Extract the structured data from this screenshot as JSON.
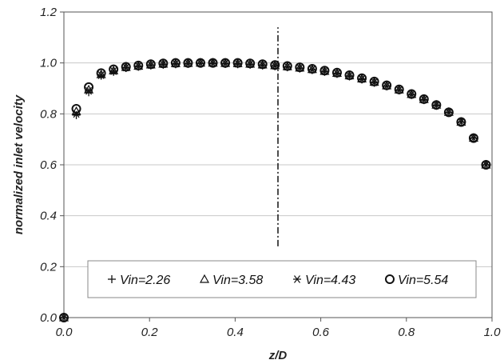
{
  "chart_data": {
    "type": "scatter",
    "title": "",
    "xlabel": "z/D",
    "ylabel": "normalized inlet velocity",
    "xlim": [
      0.0,
      1.0
    ],
    "ylim": [
      0.0,
      1.2
    ],
    "x_ticks": [
      "0.0",
      "0.2",
      "0.4",
      "0.6",
      "0.8",
      "1.0"
    ],
    "y_ticks": [
      "0.0",
      "0.2",
      "0.4",
      "0.6",
      "0.8",
      "1.0",
      "1.2"
    ],
    "grid": "horizontal",
    "legend_position": "bottom",
    "reference_line": {
      "style": "dash-dot",
      "x": 0.5,
      "y_range": [
        0.28,
        1.14
      ]
    },
    "x": [
      0.0,
      0.029,
      0.058,
      0.087,
      0.116,
      0.145,
      0.174,
      0.203,
      0.232,
      0.261,
      0.29,
      0.319,
      0.348,
      0.377,
      0.406,
      0.435,
      0.464,
      0.493,
      0.522,
      0.551,
      0.58,
      0.609,
      0.638,
      0.667,
      0.696,
      0.725,
      0.754,
      0.783,
      0.812,
      0.841,
      0.87,
      0.899,
      0.928,
      0.957,
      0.986
    ],
    "series": [
      {
        "name": "Vin=2.26",
        "marker": "plus",
        "values": [
          0.0,
          0.795,
          0.885,
          0.95,
          0.965,
          0.98,
          0.985,
          0.99,
          0.993,
          0.995,
          0.996,
          0.997,
          0.997,
          0.996,
          0.995,
          0.993,
          0.99,
          0.987,
          0.983,
          0.978,
          0.972,
          0.965,
          0.957,
          0.947,
          0.935,
          0.922,
          0.908,
          0.892,
          0.874,
          0.854,
          0.832,
          0.805,
          0.768,
          0.705,
          0.6
        ]
      },
      {
        "name": "Vin=3.58",
        "marker": "triangle",
        "values": [
          0.0,
          0.81,
          0.895,
          0.955,
          0.97,
          0.983,
          0.988,
          0.993,
          0.996,
          0.998,
          0.999,
          1.0,
          1.0,
          0.999,
          0.998,
          0.996,
          0.993,
          0.99,
          0.986,
          0.981,
          0.975,
          0.968,
          0.96,
          0.95,
          0.938,
          0.925,
          0.911,
          0.895,
          0.877,
          0.857,
          0.835,
          0.807,
          0.768,
          0.705,
          0.6
        ]
      },
      {
        "name": "Vin=4.43",
        "marker": "asterisk",
        "values": [
          0.0,
          0.8,
          0.89,
          0.952,
          0.968,
          0.982,
          0.987,
          0.992,
          0.995,
          0.997,
          0.998,
          0.999,
          0.999,
          0.998,
          0.997,
          0.995,
          0.992,
          0.989,
          0.985,
          0.98,
          0.974,
          0.967,
          0.959,
          0.949,
          0.937,
          0.924,
          0.91,
          0.894,
          0.876,
          0.856,
          0.834,
          0.806,
          0.768,
          0.705,
          0.6
        ]
      },
      {
        "name": "Vin=5.54",
        "marker": "circle",
        "values": [
          0.0,
          0.82,
          0.905,
          0.96,
          0.975,
          0.985,
          0.99,
          0.995,
          0.998,
          1.0,
          1.0,
          1.0,
          1.0,
          1.0,
          1.0,
          0.998,
          0.995,
          0.992,
          0.988,
          0.983,
          0.977,
          0.97,
          0.962,
          0.952,
          0.94,
          0.927,
          0.912,
          0.896,
          0.878,
          0.858,
          0.835,
          0.806,
          0.768,
          0.705,
          0.6
        ]
      }
    ]
  },
  "colors": {
    "marker": "#111111",
    "grid": "#c8c8c8",
    "axis": "#555555",
    "reference_line": "#111111",
    "legend_border": "#888888"
  }
}
